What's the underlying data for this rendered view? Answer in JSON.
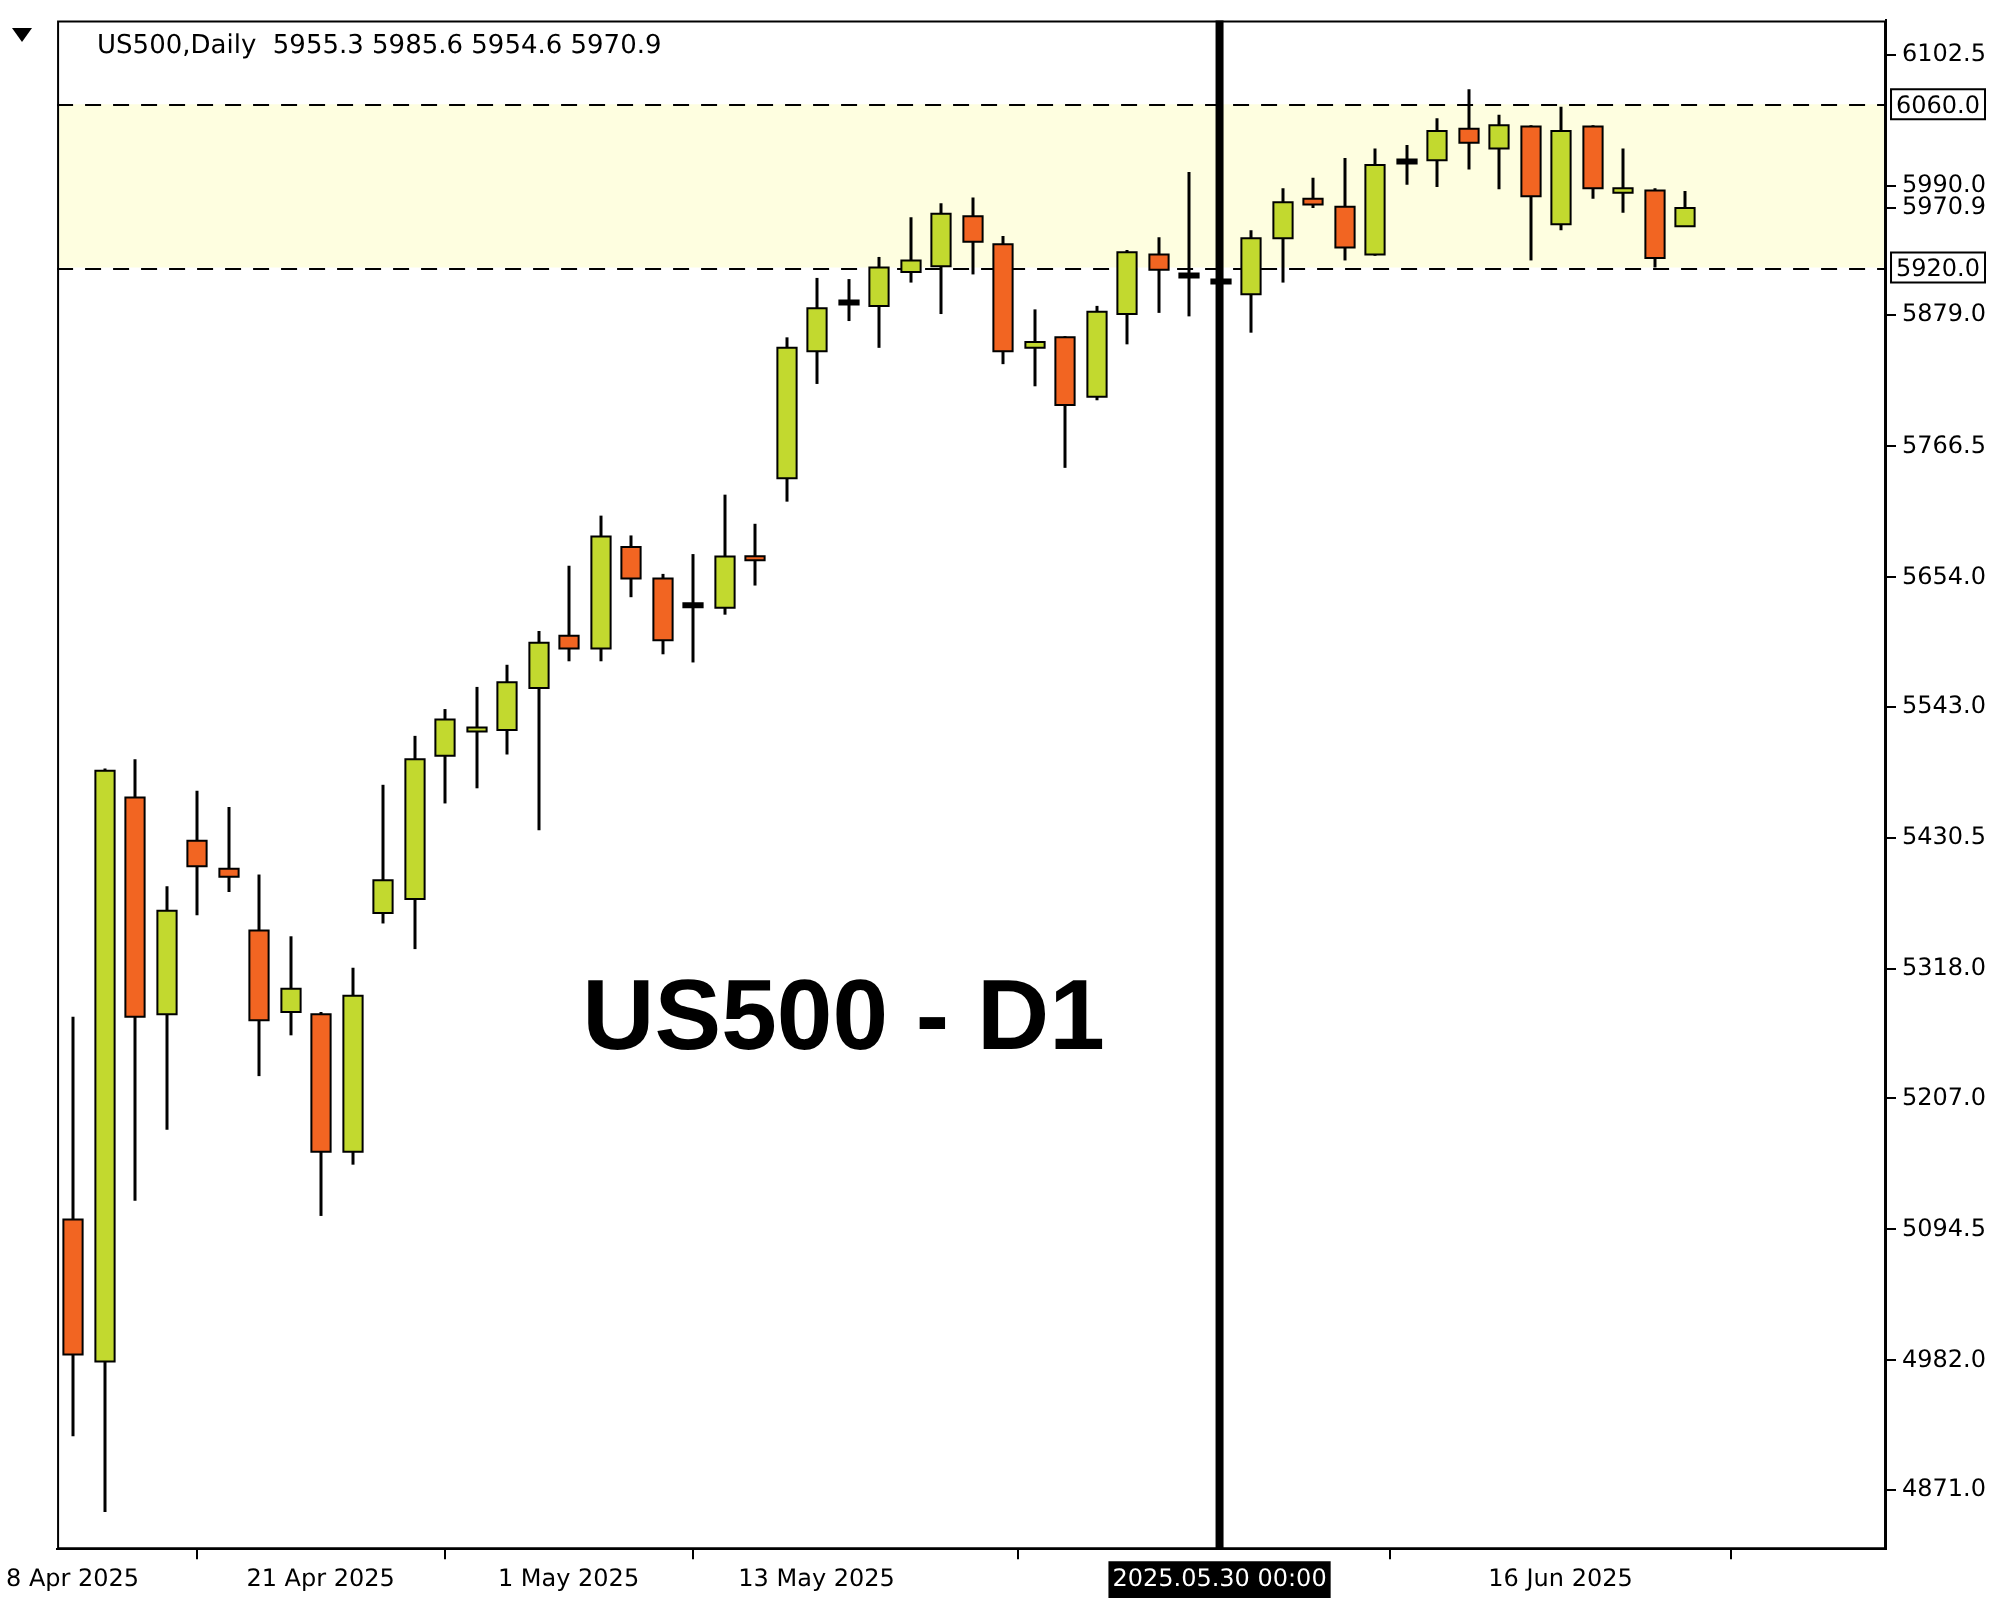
{
  "chart_data": {
    "type": "candlestick",
    "title": "US500,Daily  5955.3 5985.6 5954.6 5970.9",
    "categories": [
      "8 Apr 2025",
      null,
      null,
      null,
      null,
      null,
      null,
      null,
      "21 Apr 2025",
      null,
      null,
      null,
      null,
      null,
      null,
      null,
      "1 May 2025",
      null,
      null,
      null,
      null,
      null,
      null,
      null,
      "13 May 2025",
      null,
      null,
      null,
      null,
      null,
      null,
      null,
      null,
      null,
      null,
      null,
      null,
      "2025.05.30 00:00",
      null,
      null,
      null,
      null,
      null,
      null,
      null,
      null,
      null,
      null,
      "16 Jun 2025",
      null,
      null,
      null,
      null,
      null,
      null,
      null,
      null,
      null,
      null
    ],
    "ohlc": [
      [
        5103,
        5277,
        4917,
        4987
      ],
      [
        4981,
        5490,
        4852,
        5488
      ],
      [
        5465,
        5498,
        5119,
        5277
      ],
      [
        5279,
        5389,
        5180,
        5368
      ],
      [
        5428,
        5471,
        5364,
        5406
      ],
      [
        5404,
        5457,
        5384,
        5397
      ],
      [
        5351,
        5399,
        5226,
        5274
      ],
      [
        5281,
        5346,
        5261,
        5301
      ],
      [
        5279,
        5281,
        5106,
        5161
      ],
      [
        5161,
        5319,
        5150,
        5295
      ],
      [
        5366,
        5476,
        5357,
        5394
      ],
      [
        5378,
        5518,
        5335,
        5498
      ],
      [
        5501,
        5541,
        5460,
        5532
      ],
      [
        5522,
        5560,
        5473,
        5525
      ],
      [
        5523,
        5579,
        5502,
        5564
      ],
      [
        5559,
        5608,
        5437,
        5598
      ],
      [
        5604,
        5664,
        5582,
        5593
      ],
      [
        5593,
        5707,
        5582,
        5689
      ],
      [
        5680,
        5690,
        5637,
        5653
      ],
      [
        5653,
        5657,
        5588,
        5600
      ],
      [
        5630,
        5674,
        5581,
        5630
      ],
      [
        5628,
        5725,
        5622,
        5672
      ],
      [
        5672,
        5700,
        5647,
        5669
      ],
      [
        5739,
        5860,
        5719,
        5851
      ],
      [
        5848,
        5911,
        5820,
        5885
      ],
      [
        5890,
        5910,
        5874,
        5890
      ],
      [
        5887,
        5929,
        5851,
        5920
      ],
      [
        5916,
        5963,
        5907,
        5926
      ],
      [
        5921,
        5975,
        5880,
        5966
      ],
      [
        5964,
        5980,
        5914,
        5942
      ],
      [
        5940,
        5947,
        5837,
        5848
      ],
      [
        5851,
        5884,
        5818,
        5856
      ],
      [
        5860,
        5861,
        5748,
        5802
      ],
      [
        5809,
        5887,
        5806,
        5882
      ],
      [
        5880,
        5935,
        5854,
        5933
      ],
      [
        5931,
        5946,
        5881,
        5918
      ],
      [
        5913,
        6002,
        5878,
        5913
      ],
      [
        5908,
        5911,
        5905,
        5908
      ],
      [
        5897,
        5952,
        5864,
        5945
      ],
      [
        5945,
        5988,
        5907,
        5976
      ],
      [
        5979,
        5997,
        5971,
        5974
      ],
      [
        5972,
        6014,
        5926,
        5937
      ],
      [
        5931,
        6022,
        5930,
        6008
      ],
      [
        6011,
        6025,
        5991,
        6011
      ],
      [
        6012,
        6048,
        5989,
        6037
      ],
      [
        6039,
        6073,
        6004,
        6027
      ],
      [
        6022,
        6051,
        5987,
        6042
      ],
      [
        6041,
        6042,
        5926,
        5981
      ],
      [
        5957,
        6058,
        5952,
        6037
      ],
      [
        6041,
        6042,
        5979,
        5988
      ],
      [
        5984,
        6022,
        5967,
        5988
      ],
      [
        5986,
        5988,
        5920,
        5928
      ],
      [
        5955.3,
        5985.6,
        5954.6,
        5970.9
      ],
      null,
      null,
      null,
      null,
      null,
      null
    ],
    "colors": [
      "#f26522",
      "#c2d92f",
      "#f26522",
      "#c2d92f",
      "#f26522",
      "#f26522",
      "#f26522",
      "#c2d92f",
      "#f26522",
      "#c2d92f",
      "#c2d92f",
      "#c2d92f",
      "#c2d92f",
      "#c2d92f",
      "#c2d92f",
      "#c2d92f",
      "#f26522",
      "#c2d92f",
      "#f26522",
      "#f26522",
      "#000000",
      "#c2d92f",
      "#f26522",
      "#c2d92f",
      "#c2d92f",
      "#000000",
      "#c2d92f",
      "#c2d92f",
      "#c2d92f",
      "#f26522",
      "#f26522",
      "#c2d92f",
      "#f26522",
      "#c2d92f",
      "#c2d92f",
      "#f26522",
      "#000000",
      "#000000",
      "#c2d92f",
      "#c2d92f",
      "#f26522",
      "#f26522",
      "#c2d92f",
      "#000000",
      "#c2d92f",
      "#f26522",
      "#c2d92f",
      "#f26522",
      "#c2d92f",
      "#f26522",
      "#c2d92f",
      "#f26522",
      "#c2d92f",
      null,
      null,
      null,
      null,
      null,
      null
    ],
    "ylim": [
      4820,
      6132
    ],
    "yticks": [
      6102.5,
      {
        "value": 5990,
        "label": "5990.0"
      },
      5970.9,
      {
        "value": 5879,
        "label": "5879.0"
      },
      5766.5,
      {
        "value": 5654,
        "label": "5654.0"
      },
      {
        "value": 5543,
        "label": "5543.0"
      },
      5430.5,
      {
        "value": 5318,
        "label": "5318.0"
      },
      {
        "value": 5207,
        "label": "5207.0"
      },
      5094.5,
      {
        "value": 4982,
        "label": "4982.0"
      },
      {
        "value": 4871,
        "label": "4871.0"
      }
    ],
    "ref_lines": [
      {
        "axis": "y",
        "value": 6060,
        "label": "6060.0",
        "line_style": "dashed",
        "color": "#000000"
      },
      {
        "axis": "y",
        "value": 5920,
        "label": "5920.0",
        "line_style": "dashed",
        "color": "#000000"
      },
      {
        "axis": "x",
        "value": "2025.05.30 00:00",
        "line_style": "solid",
        "color": "#000000"
      }
    ],
    "bands": [
      {
        "axis": "y",
        "from": 5920,
        "to": 6060,
        "color": "#fefee0"
      }
    ],
    "annotations": [
      "US500 - D1"
    ],
    "grid": false,
    "legend": false
  }
}
